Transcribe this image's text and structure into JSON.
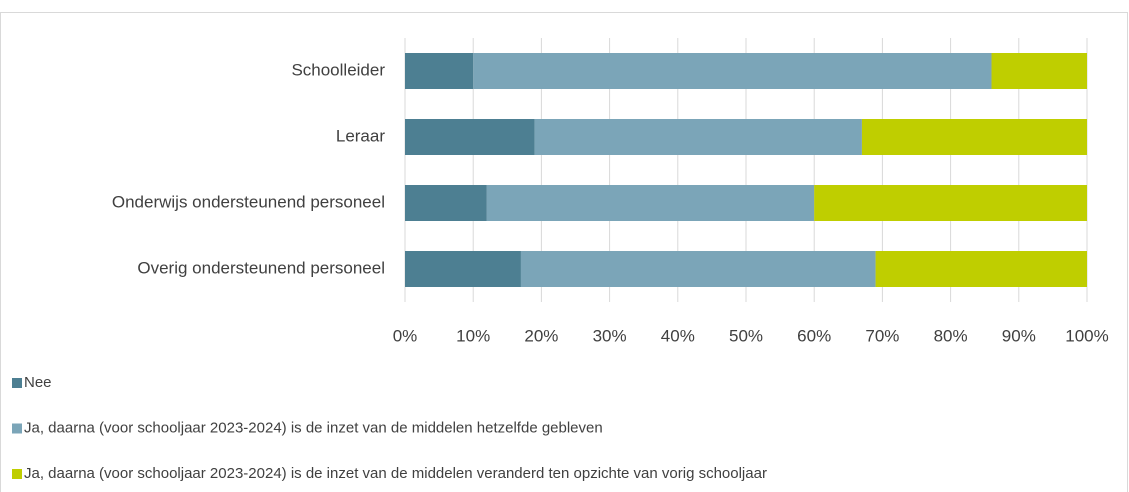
{
  "chart_data": {
    "type": "bar",
    "orientation": "horizontal",
    "stacked": true,
    "categories": [
      "Schoolleider",
      "Leraar",
      "Onderwijs ondersteunend personeel",
      "Overig ondersteunend personeel"
    ],
    "series": [
      {
        "name": "Nee",
        "color": "#4d7f92",
        "values": [
          10,
          19,
          12,
          17
        ]
      },
      {
        "name": "Ja, daarna (voor schooljaar 2023-2024) is de inzet van de middelen hetzelfde gebleven",
        "color": "#7ba5b8",
        "values": [
          76,
          48,
          48,
          52
        ]
      },
      {
        "name": "Ja, daarna (voor schooljaar 2023-2024) is de inzet van de middelen veranderd ten opzichte van vorig schooljaar",
        "color": "#bfce00",
        "values": [
          14,
          33,
          40,
          31
        ]
      }
    ],
    "xlim": [
      0,
      100
    ],
    "xticks": [
      {
        "value": 0,
        "label": "0%"
      },
      {
        "value": 10,
        "label": "10%"
      },
      {
        "value": 20,
        "label": "20%"
      },
      {
        "value": 30,
        "label": "30%"
      },
      {
        "value": 40,
        "label": "40%"
      },
      {
        "value": 50,
        "label": "50%"
      },
      {
        "value": 60,
        "label": "60%"
      },
      {
        "value": 70,
        "label": "70%"
      },
      {
        "value": 80,
        "label": "80%"
      },
      {
        "value": 90,
        "label": "90%"
      },
      {
        "value": 100,
        "label": "100%"
      }
    ],
    "grid": true,
    "legend": "bottom"
  }
}
